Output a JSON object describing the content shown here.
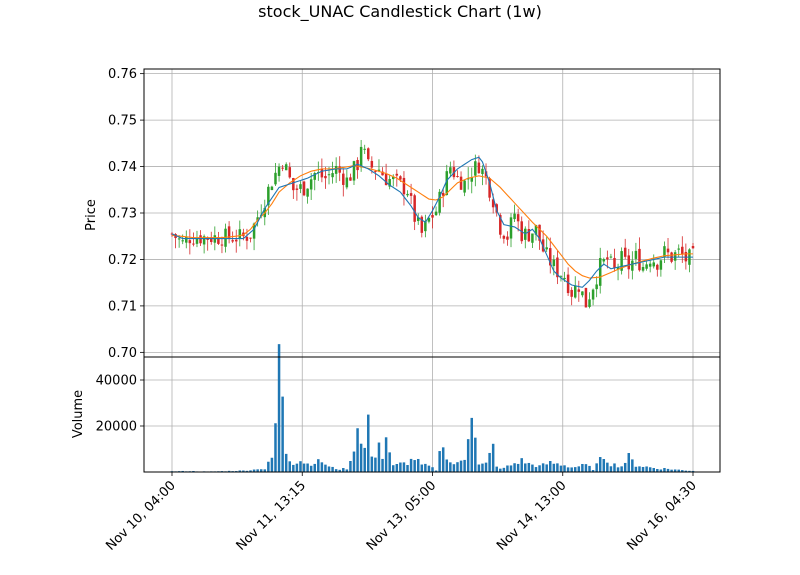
{
  "chart_data": {
    "type": "candlestick",
    "title": "stock_UNAC Candlestick Chart (1w)",
    "x_tick_labels": [
      "Nov 10, 04:00",
      "Nov 11, 13:15",
      "Nov 13, 05:00",
      "Nov 14, 13:00",
      "Nov 16, 04:30"
    ],
    "price_panel": {
      "ylabel": "Price",
      "ylim": [
        0.699,
        0.761
      ],
      "yticks": [
        0.7,
        0.71,
        0.72,
        0.73,
        0.74,
        0.75,
        0.76
      ],
      "ytick_labels": [
        "0.70",
        "0.71",
        "0.72",
        "0.73",
        "0.74",
        "0.75",
        "0.76"
      ],
      "up_color": "#2ca02c",
      "down_color": "#d62728",
      "ma_fast_color": "#1f77b4",
      "ma_slow_color": "#ff7f0e",
      "close_anchors": [
        [
          0,
          0.7255
        ],
        [
          3,
          0.7235
        ],
        [
          5,
          0.7248
        ],
        [
          20,
          0.7248
        ],
        [
          22,
          0.7255
        ],
        [
          26,
          0.733
        ],
        [
          28,
          0.737
        ],
        [
          31,
          0.7415
        ],
        [
          34,
          0.735
        ],
        [
          37,
          0.7355
        ],
        [
          40,
          0.7385
        ],
        [
          43,
          0.7375
        ],
        [
          46,
          0.7395
        ],
        [
          49,
          0.737
        ],
        [
          52,
          0.7405
        ],
        [
          53,
          0.745
        ],
        [
          55,
          0.74
        ],
        [
          58,
          0.7395
        ],
        [
          60,
          0.7375
        ],
        [
          63,
          0.7365
        ],
        [
          66,
          0.735
        ],
        [
          68,
          0.729
        ],
        [
          70,
          0.7255
        ],
        [
          72,
          0.7285
        ],
        [
          74,
          0.7305
        ],
        [
          76,
          0.7355
        ],
        [
          78,
          0.74
        ],
        [
          80,
          0.7375
        ],
        [
          82,
          0.7365
        ],
        [
          84,
          0.739
        ],
        [
          86,
          0.7405
        ],
        [
          88,
          0.7375
        ],
        [
          90,
          0.733
        ],
        [
          92,
          0.727
        ],
        [
          94,
          0.725
        ],
        [
          96,
          0.73
        ],
        [
          98,
          0.7255
        ],
        [
          100,
          0.7255
        ],
        [
          102,
          0.7265
        ],
        [
          104,
          0.722
        ],
        [
          106,
          0.7195
        ],
        [
          108,
          0.7175
        ],
        [
          110,
          0.7165
        ],
        [
          112,
          0.713
        ],
        [
          114,
          0.7145
        ],
        [
          116,
          0.7105
        ],
        [
          118,
          0.7145
        ],
        [
          120,
          0.7185
        ],
        [
          122,
          0.72
        ],
        [
          124,
          0.7175
        ],
        [
          126,
          0.72
        ],
        [
          128,
          0.7185
        ],
        [
          130,
          0.7205
        ],
        [
          132,
          0.7185
        ],
        [
          134,
          0.7205
        ],
        [
          136,
          0.7195
        ],
        [
          138,
          0.7215
        ],
        [
          140,
          0.7205
        ],
        [
          142,
          0.7215
        ],
        [
          144,
          0.72
        ],
        [
          146,
          0.7205
        ]
      ],
      "ma_fast_anchors": [
        [
          0,
          0.7255
        ],
        [
          3,
          0.7245
        ],
        [
          6,
          0.7245
        ],
        [
          20,
          0.7245
        ],
        [
          23,
          0.7265
        ],
        [
          26,
          0.731
        ],
        [
          30,
          0.7355
        ],
        [
          34,
          0.7365
        ],
        [
          38,
          0.7375
        ],
        [
          42,
          0.739
        ],
        [
          46,
          0.7395
        ],
        [
          49,
          0.7395
        ],
        [
          52,
          0.7405
        ],
        [
          55,
          0.7395
        ],
        [
          58,
          0.738
        ],
        [
          61,
          0.736
        ],
        [
          64,
          0.7345
        ],
        [
          67,
          0.7315
        ],
        [
          69,
          0.729
        ],
        [
          71,
          0.728
        ],
        [
          73,
          0.7305
        ],
        [
          75,
          0.7335
        ],
        [
          77,
          0.737
        ],
        [
          80,
          0.7395
        ],
        [
          82,
          0.7405
        ],
        [
          84,
          0.7415
        ],
        [
          86,
          0.742
        ],
        [
          87,
          0.741
        ],
        [
          89,
          0.7365
        ],
        [
          91,
          0.7305
        ],
        [
          93,
          0.7275
        ],
        [
          96,
          0.727
        ],
        [
          99,
          0.7255
        ],
        [
          101,
          0.7265
        ],
        [
          103,
          0.7245
        ],
        [
          105,
          0.721
        ],
        [
          107,
          0.7175
        ],
        [
          109,
          0.716
        ],
        [
          112,
          0.7145
        ],
        [
          115,
          0.714
        ],
        [
          117,
          0.7155
        ],
        [
          119,
          0.7175
        ],
        [
          121,
          0.719
        ],
        [
          123,
          0.718
        ],
        [
          126,
          0.7185
        ],
        [
          129,
          0.719
        ],
        [
          132,
          0.7195
        ],
        [
          135,
          0.72
        ],
        [
          138,
          0.7205
        ],
        [
          141,
          0.7205
        ],
        [
          144,
          0.7205
        ],
        [
          146,
          0.7205
        ]
      ],
      "ma_slow_anchors": [
        [
          0,
          0.7252
        ],
        [
          6,
          0.7247
        ],
        [
          14,
          0.7247
        ],
        [
          18,
          0.725
        ],
        [
          20,
          0.7253
        ],
        [
          22,
          0.7265
        ],
        [
          24,
          0.7285
        ],
        [
          26,
          0.73
        ],
        [
          28,
          0.732
        ],
        [
          30,
          0.7345
        ],
        [
          33,
          0.7365
        ],
        [
          36,
          0.738
        ],
        [
          39,
          0.739
        ],
        [
          42,
          0.7395
        ],
        [
          45,
          0.7395
        ],
        [
          48,
          0.7398
        ],
        [
          51,
          0.7402
        ],
        [
          54,
          0.7398
        ],
        [
          57,
          0.7392
        ],
        [
          60,
          0.7385
        ],
        [
          63,
          0.7375
        ],
        [
          66,
          0.736
        ],
        [
          69,
          0.7345
        ],
        [
          72,
          0.733
        ],
        [
          74,
          0.7328
        ],
        [
          76,
          0.7335
        ],
        [
          78,
          0.735
        ],
        [
          80,
          0.7365
        ],
        [
          83,
          0.7375
        ],
        [
          86,
          0.738
        ],
        [
          89,
          0.7375
        ],
        [
          92,
          0.7355
        ],
        [
          95,
          0.733
        ],
        [
          98,
          0.7305
        ],
        [
          101,
          0.728
        ],
        [
          103,
          0.7265
        ],
        [
          105,
          0.725
        ],
        [
          107,
          0.723
        ],
        [
          109,
          0.721
        ],
        [
          111,
          0.719
        ],
        [
          113,
          0.7175
        ],
        [
          115,
          0.7165
        ],
        [
          117,
          0.716
        ],
        [
          120,
          0.7162
        ],
        [
          123,
          0.7172
        ],
        [
          126,
          0.7182
        ],
        [
          129,
          0.719
        ],
        [
          132,
          0.7197
        ],
        [
          135,
          0.7203
        ],
        [
          138,
          0.7208
        ],
        [
          141,
          0.721
        ],
        [
          144,
          0.7212
        ],
        [
          146,
          0.7212
        ]
      ]
    },
    "volume_panel": {
      "ylabel": "Volume",
      "ylim": [
        0,
        50000
      ],
      "yticks": [
        20000,
        40000
      ],
      "ytick_labels": [
        "20000",
        "40000"
      ],
      "bar_color": "#1f77b4",
      "volume_anchors": [
        [
          0,
          300
        ],
        [
          5,
          400
        ],
        [
          10,
          200
        ],
        [
          20,
          600
        ],
        [
          23,
          1000
        ],
        [
          24,
          1500
        ],
        [
          26,
          1200
        ],
        [
          28,
          6000
        ],
        [
          29,
          21000
        ],
        [
          30,
          48000
        ],
        [
          31,
          36000
        ],
        [
          32,
          9000
        ],
        [
          33,
          6000
        ],
        [
          34,
          4000
        ],
        [
          36,
          5000
        ],
        [
          38,
          3500
        ],
        [
          40,
          4200
        ],
        [
          42,
          4600
        ],
        [
          44,
          2200
        ],
        [
          45,
          1800
        ],
        [
          47,
          1200
        ],
        [
          49,
          1500
        ],
        [
          50,
          4000
        ],
        [
          52,
          20000
        ],
        [
          53,
          16000
        ],
        [
          54,
          10000
        ],
        [
          55,
          23000
        ],
        [
          56,
          7000
        ],
        [
          57,
          5000
        ],
        [
          58,
          16000
        ],
        [
          59,
          7000
        ],
        [
          60,
          15000
        ],
        [
          61,
          9000
        ],
        [
          62,
          2500
        ],
        [
          64,
          3500
        ],
        [
          66,
          4000
        ],
        [
          68,
          6000
        ],
        [
          70,
          3000
        ],
        [
          72,
          2500
        ],
        [
          74,
          800
        ],
        [
          76,
          15000
        ],
        [
          77,
          6000
        ],
        [
          78,
          4000
        ],
        [
          80,
          3500
        ],
        [
          82,
          6000
        ],
        [
          84,
          30000
        ],
        [
          85,
          17000
        ],
        [
          86,
          3000
        ],
        [
          88,
          3500
        ],
        [
          90,
          11000
        ],
        [
          91,
          3000
        ],
        [
          92,
          1200
        ],
        [
          95,
          3000
        ],
        [
          98,
          5000
        ],
        [
          100,
          3500
        ],
        [
          103,
          2500
        ],
        [
          106,
          4000
        ],
        [
          108,
          3500
        ],
        [
          110,
          3000
        ],
        [
          112,
          2000
        ],
        [
          114,
          2500
        ],
        [
          116,
          3000
        ],
        [
          118,
          1200
        ],
        [
          121,
          7000
        ],
        [
          123,
          3500
        ],
        [
          126,
          2500
        ],
        [
          128,
          6500
        ],
        [
          130,
          3000
        ],
        [
          132,
          2500
        ],
        [
          134,
          2000
        ],
        [
          136,
          1500
        ],
        [
          138,
          1500
        ],
        [
          140,
          1200
        ],
        [
          143,
          800
        ],
        [
          146,
          500
        ]
      ]
    },
    "n_bars": 147,
    "grid": true
  }
}
